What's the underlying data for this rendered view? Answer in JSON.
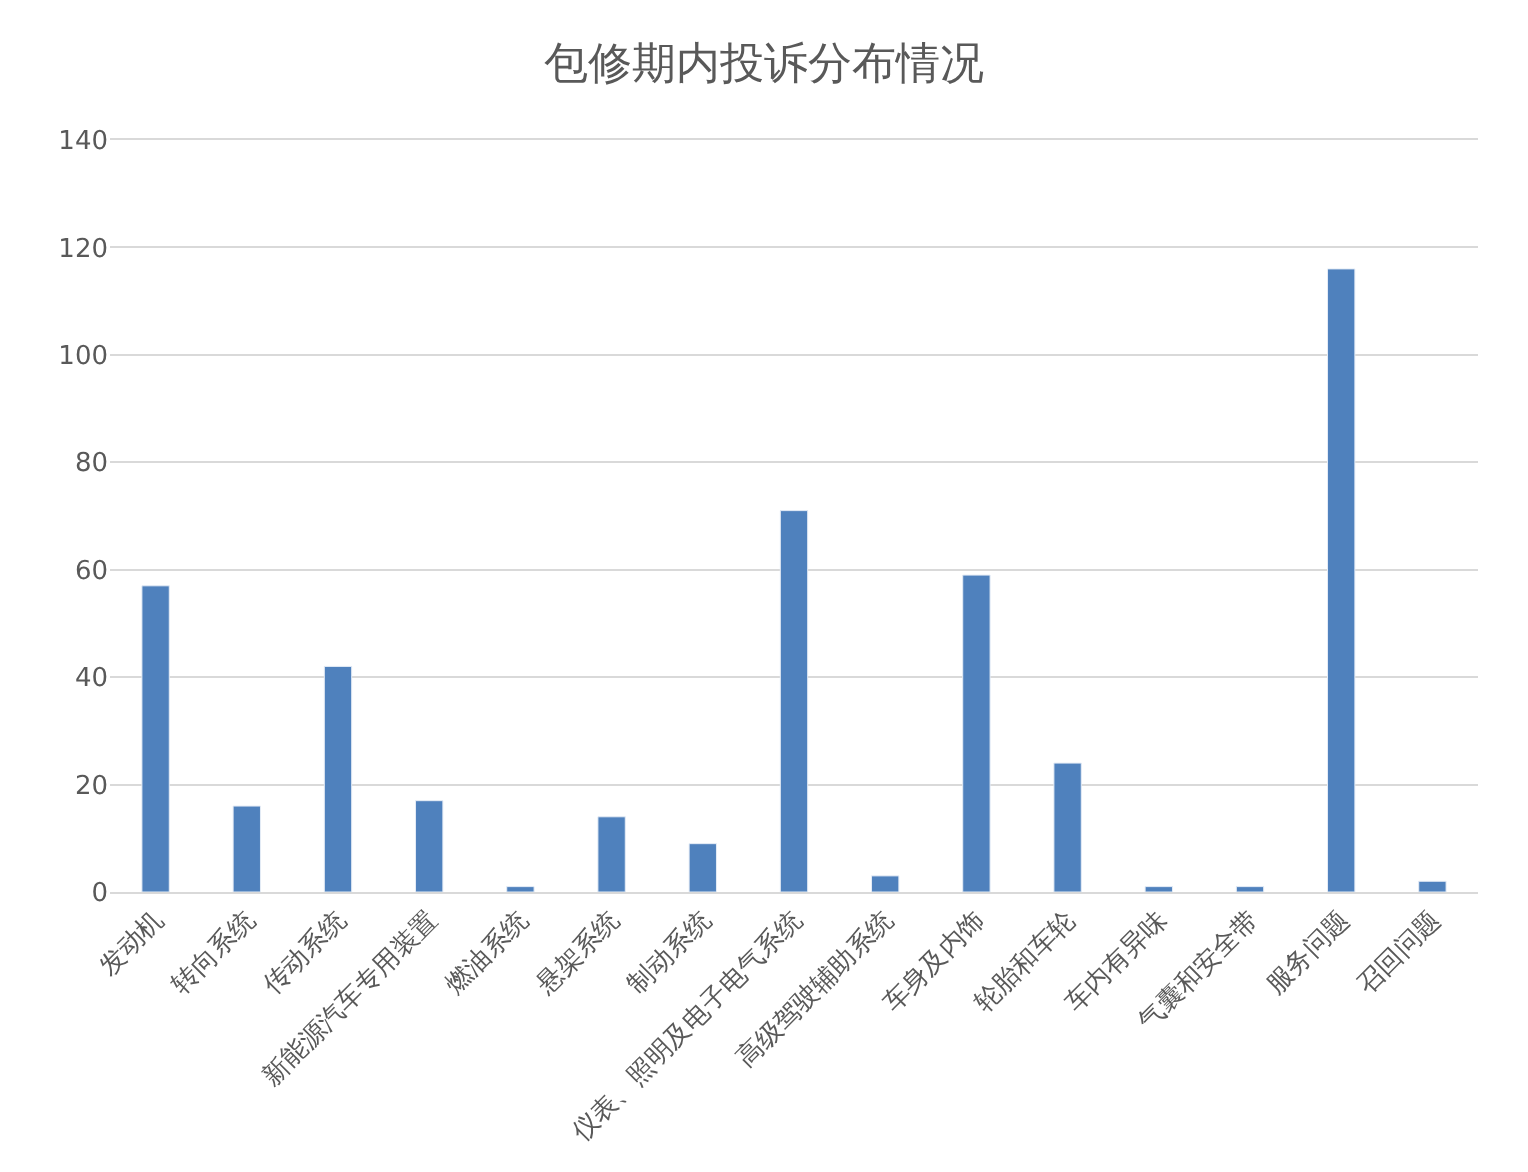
{
  "chart_data": {
    "type": "bar",
    "title": "包修期内投诉分布情况",
    "categories": [
      "发动机",
      "转向系统",
      "传动系统",
      "新能源汽车专用装置",
      "燃油系统",
      "悬架系统",
      "制动系统",
      "仪表、照明及电子电气系统",
      "高级驾驶辅助系统",
      "车身及内饰",
      "轮胎和车轮",
      "车内有异味",
      "气囊和安全带",
      "服务问题",
      "召回问题"
    ],
    "values": [
      57,
      16,
      42,
      17,
      1,
      14,
      9,
      71,
      3,
      59,
      24,
      1,
      1,
      116,
      2
    ],
    "color": "#4f81bd",
    "ylim": [
      0,
      140
    ],
    "yticks": [
      0,
      20,
      40,
      60,
      80,
      100,
      120,
      140
    ],
    "grid": "y"
  }
}
